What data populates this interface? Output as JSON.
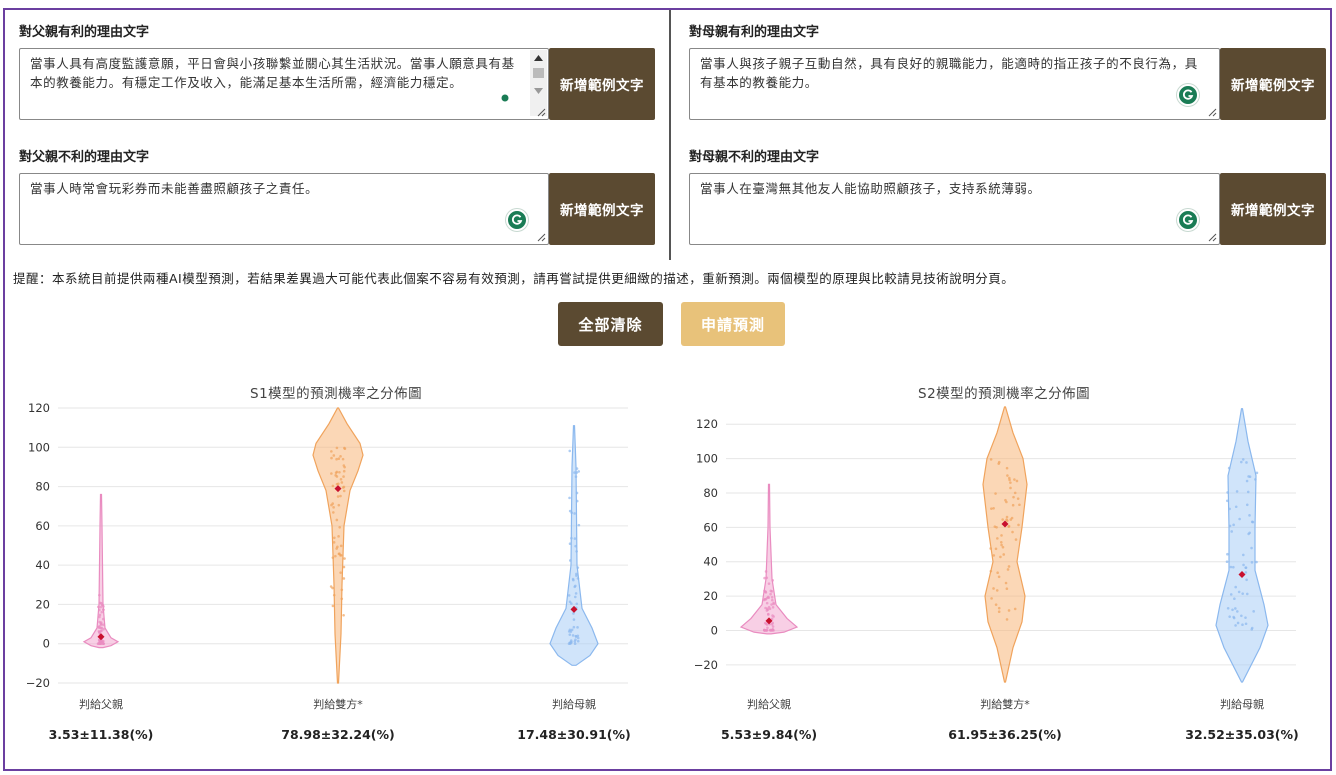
{
  "father_pro": {
    "label": "對父親有利的理由文字",
    "text": "當事人具有高度監護意願，平日會與小孩聯繫並關心其生活狀況。當事人願意具有基本的教養能力。有穩定工作及收入，能滿足基本生活所需，經濟能力穩定。",
    "button": "新增範例文字"
  },
  "father_con": {
    "label": "對父親不利的理由文字",
    "text": "當事人時常會玩彩券而未能善盡照顧孩子之責任。",
    "button": "新增範例文字"
  },
  "mother_pro": {
    "label": "對母親有利的理由文字",
    "text": "當事人與孩子親子互動自然，具有良好的親職能力，能適時的指正孩子的不良行為，具有基本的教養能力。",
    "button": "新增範例文字"
  },
  "mother_con": {
    "label": "對母親不利的理由文字",
    "text": "當事人在臺灣無其他友人能協助照顧孩子，支持系統薄弱。",
    "button": "新增範例文字"
  },
  "hint": "提醒：本系統目前提供兩種AI模型預測，若結果差異過大可能代表此個案不容易有效預測，請再嘗試提供更細緻的描述，重新預測。兩個模型的原理與比較請見技術說明分頁。",
  "actions": {
    "clear": "全部清除",
    "predict": "申請預測"
  },
  "colors": {
    "brown": "#5b4a31",
    "gold": "#e8c27a",
    "pink": "#f2a7cf",
    "orange": "#f7b77a",
    "blue": "#a9cdf5",
    "mean": "#c8102e",
    "frame": "#6b3fa0"
  },
  "icons": {
    "grammar": "grammarly-icon"
  },
  "chart_data": [
    {
      "type": "violin",
      "title": "S1模型的預測機率之分佈圖",
      "ylim": [
        -20,
        120
      ],
      "yticks": [
        -20,
        0,
        20,
        40,
        60,
        80,
        100,
        120
      ],
      "grid": true,
      "categories": [
        "判給父親",
        "判給雙方*",
        "判給母親"
      ],
      "means": [
        3.53,
        78.98,
        17.48
      ],
      "stats": [
        "3.53±11.38(%)",
        "78.98±32.24(%)",
        "17.48±30.91(%)"
      ],
      "ranges": [
        [
          0,
          76
        ],
        [
          -20,
          120
        ],
        [
          -11,
          111
        ]
      ]
    },
    {
      "type": "violin",
      "title": "S2模型的預測機率之分佈圖",
      "ylim": [
        -30,
        130
      ],
      "yticks": [
        -20,
        0,
        20,
        40,
        60,
        80,
        100,
        120
      ],
      "grid": true,
      "categories": [
        "判給父親",
        "判給雙方*",
        "判給母親"
      ],
      "means": [
        5.53,
        61.95,
        32.52
      ],
      "stats": [
        "5.53±9.84(%)",
        "61.95±36.25(%)",
        "32.52±35.03(%)"
      ],
      "ranges": [
        [
          -2,
          85
        ],
        [
          -30,
          130
        ],
        [
          -30,
          129
        ]
      ]
    }
  ]
}
